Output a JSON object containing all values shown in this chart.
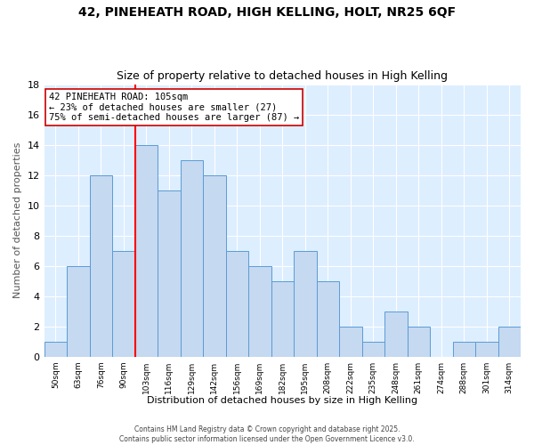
{
  "title1": "42, PINEHEATH ROAD, HIGH KELLING, HOLT, NR25 6QF",
  "title2": "Size of property relative to detached houses in High Kelling",
  "xlabel": "Distribution of detached houses by size in High Kelling",
  "ylabel": "Number of detached properties",
  "categories": [
    "50sqm",
    "63sqm",
    "76sqm",
    "90sqm",
    "103sqm",
    "116sqm",
    "129sqm",
    "142sqm",
    "156sqm",
    "169sqm",
    "182sqm",
    "195sqm",
    "208sqm",
    "222sqm",
    "235sqm",
    "248sqm",
    "261sqm",
    "274sqm",
    "288sqm",
    "301sqm",
    "314sqm"
  ],
  "values": [
    1,
    6,
    12,
    7,
    14,
    11,
    13,
    12,
    7,
    6,
    5,
    7,
    5,
    2,
    1,
    3,
    2,
    0,
    1,
    1,
    2
  ],
  "bar_color": "#c5d9f0",
  "bar_edge_color": "#5b9bd5",
  "grid_color": "#c5d9f0",
  "background_color": "#ddeeff",
  "redline_index": 4,
  "annotation_line1": "42 PINEHEATH ROAD: 105sqm",
  "annotation_line2": "← 23% of detached houses are smaller (27)",
  "annotation_line3": "75% of semi-detached houses are larger (87) →",
  "footer1": "Contains HM Land Registry data © Crown copyright and database right 2025.",
  "footer2": "Contains public sector information licensed under the Open Government Licence v3.0.",
  "ylim": [
    0,
    18
  ],
  "yticks": [
    0,
    2,
    4,
    6,
    8,
    10,
    12,
    14,
    16,
    18
  ]
}
